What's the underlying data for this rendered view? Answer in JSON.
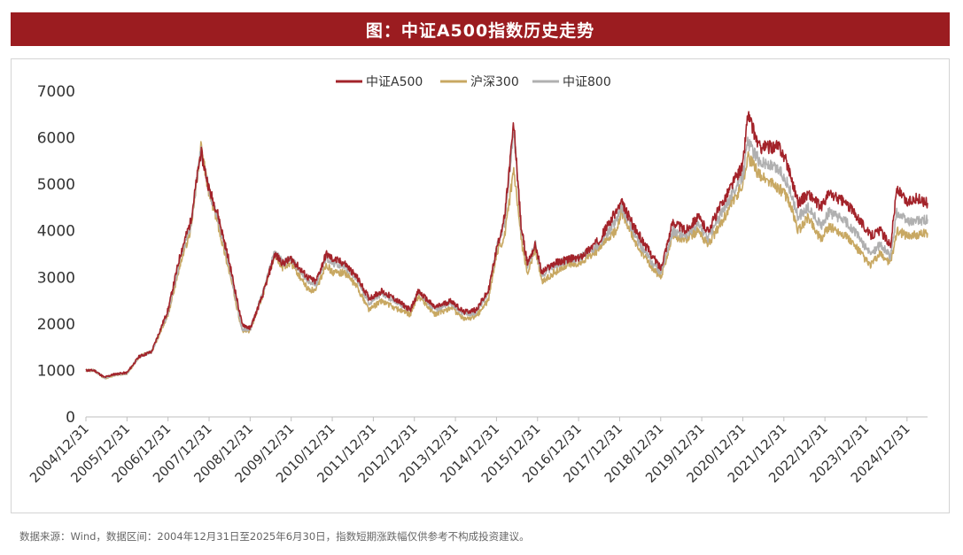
{
  "header": {
    "title": "图：中证A500指数历史走势"
  },
  "source": {
    "text": "数据来源：Wind，数据区间：2004年12月31日至2025年6月30日，指数短期涨跌幅仅供参考不构成投资建议。"
  },
  "colors": {
    "title_bg": "#9b1c20",
    "a500": "#a3232a",
    "hs300": "#c8a862",
    "zz800": "#b0b0b0"
  },
  "chart_data": {
    "type": "line",
    "title": "图：中证A500指数历史走势",
    "xlabel": "",
    "ylabel": "",
    "ylim": [
      0,
      7000
    ],
    "yticks": [
      0,
      1000,
      2000,
      3000,
      4000,
      5000,
      6000,
      7000
    ],
    "xlim": [
      2005.0,
      2025.5
    ],
    "xticks": [
      "2004/12/31",
      "2005/12/31",
      "2006/12/31",
      "2007/12/31",
      "2008/12/31",
      "2009/12/31",
      "2010/12/31",
      "2011/12/31",
      "2012/12/31",
      "2013/12/31",
      "2014/12/31",
      "2015/12/31",
      "2016/12/31",
      "2017/12/31",
      "2018/12/31",
      "2019/12/31",
      "2020/12/31",
      "2021/12/31",
      "2022/12/31",
      "2023/12/31",
      "2024/12/31"
    ],
    "legend_position": "top-center",
    "grid": false,
    "series": [
      {
        "name": "中证A500",
        "color": "#a3232a",
        "points": [
          [
            2005.0,
            1000
          ],
          [
            2005.2,
            1000
          ],
          [
            2005.45,
            850
          ],
          [
            2005.7,
            920
          ],
          [
            2006.0,
            950
          ],
          [
            2006.3,
            1300
          ],
          [
            2006.6,
            1400
          ],
          [
            2007.0,
            2300
          ],
          [
            2007.3,
            3500
          ],
          [
            2007.55,
            4200
          ],
          [
            2007.8,
            5700
          ],
          [
            2008.0,
            4900
          ],
          [
            2008.2,
            4400
          ],
          [
            2008.5,
            3300
          ],
          [
            2008.8,
            2000
          ],
          [
            2009.0,
            1900
          ],
          [
            2009.3,
            2600
          ],
          [
            2009.6,
            3500
          ],
          [
            2009.8,
            3300
          ],
          [
            2010.0,
            3400
          ],
          [
            2010.4,
            3000
          ],
          [
            2010.6,
            2900
          ],
          [
            2010.85,
            3500
          ],
          [
            2011.0,
            3400
          ],
          [
            2011.3,
            3300
          ],
          [
            2011.6,
            3000
          ],
          [
            2011.9,
            2550
          ],
          [
            2012.2,
            2700
          ],
          [
            2012.5,
            2550
          ],
          [
            2012.9,
            2300
          ],
          [
            2013.1,
            2700
          ],
          [
            2013.5,
            2350
          ],
          [
            2013.9,
            2500
          ],
          [
            2014.2,
            2250
          ],
          [
            2014.5,
            2300
          ],
          [
            2014.8,
            2700
          ],
          [
            2015.0,
            3600
          ],
          [
            2015.2,
            4300
          ],
          [
            2015.42,
            6300
          ],
          [
            2015.6,
            4100
          ],
          [
            2015.75,
            3300
          ],
          [
            2015.95,
            3700
          ],
          [
            2016.1,
            3100
          ],
          [
            2016.4,
            3300
          ],
          [
            2016.8,
            3400
          ],
          [
            2017.0,
            3400
          ],
          [
            2017.5,
            3800
          ],
          [
            2017.9,
            4400
          ],
          [
            2018.05,
            4600
          ],
          [
            2018.4,
            4000
          ],
          [
            2018.8,
            3450
          ],
          [
            2019.0,
            3200
          ],
          [
            2019.3,
            4200
          ],
          [
            2019.6,
            4000
          ],
          [
            2019.9,
            4300
          ],
          [
            2020.15,
            4000
          ],
          [
            2020.5,
            4600
          ],
          [
            2020.8,
            5100
          ],
          [
            2021.0,
            5400
          ],
          [
            2021.12,
            6500
          ],
          [
            2021.4,
            5800
          ],
          [
            2021.9,
            5800
          ],
          [
            2022.1,
            5400
          ],
          [
            2022.35,
            4600
          ],
          [
            2022.6,
            4800
          ],
          [
            2022.9,
            4500
          ],
          [
            2023.1,
            4800
          ],
          [
            2023.5,
            4600
          ],
          [
            2023.8,
            4300
          ],
          [
            2024.1,
            3900
          ],
          [
            2024.35,
            4000
          ],
          [
            2024.6,
            3700
          ],
          [
            2024.75,
            4900
          ],
          [
            2025.0,
            4600
          ],
          [
            2025.2,
            4700
          ],
          [
            2025.5,
            4600
          ]
        ]
      },
      {
        "name": "沪深300",
        "color": "#c8a862",
        "points": [
          [
            2005.0,
            1000
          ],
          [
            2005.2,
            1000
          ],
          [
            2005.45,
            830
          ],
          [
            2005.7,
            900
          ],
          [
            2006.0,
            930
          ],
          [
            2006.3,
            1300
          ],
          [
            2006.6,
            1400
          ],
          [
            2007.0,
            2200
          ],
          [
            2007.3,
            3300
          ],
          [
            2007.55,
            4000
          ],
          [
            2007.8,
            5800
          ],
          [
            2008.0,
            4800
          ],
          [
            2008.2,
            4200
          ],
          [
            2008.5,
            3100
          ],
          [
            2008.8,
            1850
          ],
          [
            2009.0,
            1850
          ],
          [
            2009.3,
            2600
          ],
          [
            2009.6,
            3500
          ],
          [
            2009.8,
            3200
          ],
          [
            2010.0,
            3300
          ],
          [
            2010.4,
            2750
          ],
          [
            2010.6,
            2700
          ],
          [
            2010.85,
            3300
          ],
          [
            2011.0,
            3100
          ],
          [
            2011.3,
            3100
          ],
          [
            2011.6,
            2800
          ],
          [
            2011.9,
            2300
          ],
          [
            2012.2,
            2500
          ],
          [
            2012.5,
            2350
          ],
          [
            2012.9,
            2200
          ],
          [
            2013.1,
            2600
          ],
          [
            2013.5,
            2200
          ],
          [
            2013.9,
            2350
          ],
          [
            2014.2,
            2100
          ],
          [
            2014.5,
            2150
          ],
          [
            2014.8,
            2500
          ],
          [
            2015.0,
            3500
          ],
          [
            2015.2,
            3900
          ],
          [
            2015.42,
            5300
          ],
          [
            2015.6,
            3800
          ],
          [
            2015.75,
            3100
          ],
          [
            2015.95,
            3600
          ],
          [
            2016.1,
            2900
          ],
          [
            2016.4,
            3100
          ],
          [
            2016.8,
            3300
          ],
          [
            2017.0,
            3300
          ],
          [
            2017.5,
            3600
          ],
          [
            2017.9,
            4000
          ],
          [
            2018.05,
            4400
          ],
          [
            2018.4,
            3700
          ],
          [
            2018.8,
            3200
          ],
          [
            2019.0,
            3000
          ],
          [
            2019.3,
            3900
          ],
          [
            2019.6,
            3800
          ],
          [
            2019.9,
            4000
          ],
          [
            2020.15,
            3700
          ],
          [
            2020.5,
            4200
          ],
          [
            2020.8,
            4700
          ],
          [
            2021.0,
            5000
          ],
          [
            2021.12,
            5600
          ],
          [
            2021.4,
            5200
          ],
          [
            2021.9,
            4900
          ],
          [
            2022.1,
            4700
          ],
          [
            2022.35,
            4000
          ],
          [
            2022.6,
            4300
          ],
          [
            2022.9,
            3800
          ],
          [
            2023.1,
            4100
          ],
          [
            2023.5,
            3900
          ],
          [
            2023.8,
            3600
          ],
          [
            2024.1,
            3250
          ],
          [
            2024.35,
            3500
          ],
          [
            2024.6,
            3300
          ],
          [
            2024.75,
            4000
          ],
          [
            2025.0,
            3900
          ],
          [
            2025.2,
            3900
          ],
          [
            2025.5,
            3950
          ]
        ]
      },
      {
        "name": "中证800",
        "color": "#b0b0b0",
        "points": [
          [
            2005.0,
            1000
          ],
          [
            2005.2,
            1000
          ],
          [
            2005.45,
            840
          ],
          [
            2005.7,
            910
          ],
          [
            2006.0,
            940
          ],
          [
            2006.3,
            1300
          ],
          [
            2006.6,
            1400
          ],
          [
            2007.0,
            2250
          ],
          [
            2007.3,
            3400
          ],
          [
            2007.55,
            4100
          ],
          [
            2007.8,
            5750
          ],
          [
            2008.0,
            4850
          ],
          [
            2008.2,
            4300
          ],
          [
            2008.5,
            3200
          ],
          [
            2008.8,
            1900
          ],
          [
            2009.0,
            1880
          ],
          [
            2009.3,
            2650
          ],
          [
            2009.6,
            3550
          ],
          [
            2009.8,
            3300
          ],
          [
            2010.0,
            3400
          ],
          [
            2010.4,
            2900
          ],
          [
            2010.6,
            2850
          ],
          [
            2010.85,
            3450
          ],
          [
            2011.0,
            3300
          ],
          [
            2011.3,
            3250
          ],
          [
            2011.6,
            2950
          ],
          [
            2011.9,
            2450
          ],
          [
            2012.2,
            2650
          ],
          [
            2012.5,
            2500
          ],
          [
            2012.9,
            2300
          ],
          [
            2013.1,
            2700
          ],
          [
            2013.5,
            2300
          ],
          [
            2013.9,
            2450
          ],
          [
            2014.2,
            2200
          ],
          [
            2014.5,
            2250
          ],
          [
            2014.8,
            2650
          ],
          [
            2015.0,
            3600
          ],
          [
            2015.2,
            4200
          ],
          [
            2015.42,
            6200
          ],
          [
            2015.6,
            4050
          ],
          [
            2015.75,
            3250
          ],
          [
            2015.95,
            3700
          ],
          [
            2016.1,
            3050
          ],
          [
            2016.4,
            3250
          ],
          [
            2016.8,
            3400
          ],
          [
            2017.0,
            3400
          ],
          [
            2017.5,
            3700
          ],
          [
            2017.9,
            4200
          ],
          [
            2018.05,
            4500
          ],
          [
            2018.4,
            3850
          ],
          [
            2018.8,
            3300
          ],
          [
            2019.0,
            3100
          ],
          [
            2019.3,
            4000
          ],
          [
            2019.6,
            3900
          ],
          [
            2019.9,
            4150
          ],
          [
            2020.15,
            3850
          ],
          [
            2020.5,
            4400
          ],
          [
            2020.8,
            4900
          ],
          [
            2021.0,
            5200
          ],
          [
            2021.12,
            5900
          ],
          [
            2021.4,
            5500
          ],
          [
            2021.9,
            5300
          ],
          [
            2022.1,
            5000
          ],
          [
            2022.35,
            4300
          ],
          [
            2022.6,
            4500
          ],
          [
            2022.9,
            4100
          ],
          [
            2023.1,
            4400
          ],
          [
            2023.5,
            4200
          ],
          [
            2023.8,
            3900
          ],
          [
            2024.1,
            3500
          ],
          [
            2024.35,
            3700
          ],
          [
            2024.6,
            3450
          ],
          [
            2024.75,
            4400
          ],
          [
            2025.0,
            4200
          ],
          [
            2025.2,
            4200
          ],
          [
            2025.5,
            4250
          ]
        ]
      }
    ]
  }
}
